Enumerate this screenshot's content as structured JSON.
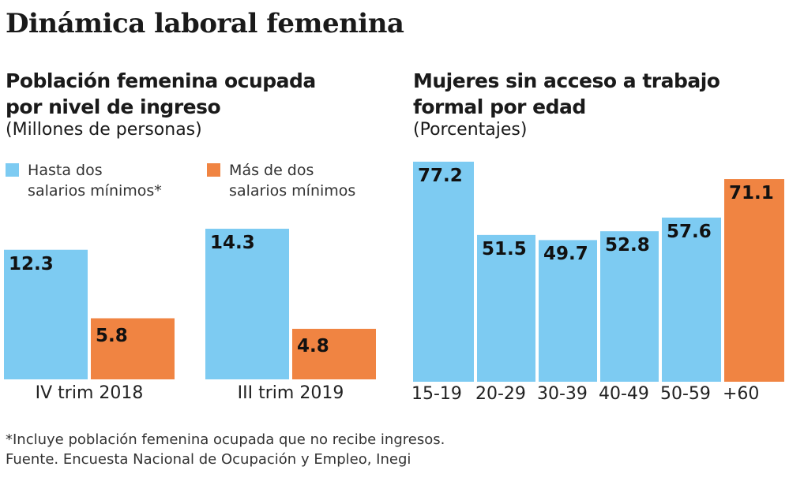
{
  "title": "Dinámica laboral femenina",
  "colors": {
    "blue": "#7dcbf2",
    "orange": "#f08442"
  },
  "chart_data": [
    {
      "type": "bar",
      "title": "Población femenina ocupada por nivel de ingreso",
      "title_line1": "Población femenina ocupada",
      "title_line2": "por nivel de ingreso",
      "unit": "(Millones de personas)",
      "categories": [
        "IV trim 2018",
        "III trim 2019"
      ],
      "series": [
        {
          "name": "Hasta dos salarios mínimos*",
          "name_line1": "Hasta dos",
          "name_line2": "salarios mínimos*",
          "color": "#7dcbf2",
          "values": [
            12.3,
            14.3
          ],
          "labels": [
            "12.3",
            "14.3"
          ]
        },
        {
          "name": "Más de dos salarios mínimos",
          "name_line1": "Más de dos",
          "name_line2": "salarios mínimos",
          "color": "#f08442",
          "values": [
            5.8,
            4.8
          ],
          "labels": [
            "5.8",
            "4.8"
          ]
        }
      ],
      "legend": "top",
      "grid": false
    },
    {
      "type": "bar",
      "title": "Mujeres sin acceso a trabajo formal por edad",
      "title_line1": "Mujeres sin acceso a trabajo",
      "title_line2": "formal por edad",
      "unit": "(Porcentajes)",
      "categories": [
        "15-19",
        "20-29",
        "30-39",
        "40-49",
        "50-59",
        "+60"
      ],
      "values": [
        77.2,
        51.5,
        49.7,
        52.8,
        57.6,
        71.1
      ],
      "labels": [
        "77.2",
        "51.5",
        "49.7",
        "52.8",
        "57.6",
        "71.1"
      ],
      "bar_colors": [
        "#7dcbf2",
        "#7dcbf2",
        "#7dcbf2",
        "#7dcbf2",
        "#7dcbf2",
        "#f08442"
      ],
      "grid": false
    }
  ],
  "footnote": "*Incluye población femenina ocupada que no recibe ingresos.",
  "source": "Fuente. Encuesta Nacional de Ocupación y Empleo, Inegi"
}
